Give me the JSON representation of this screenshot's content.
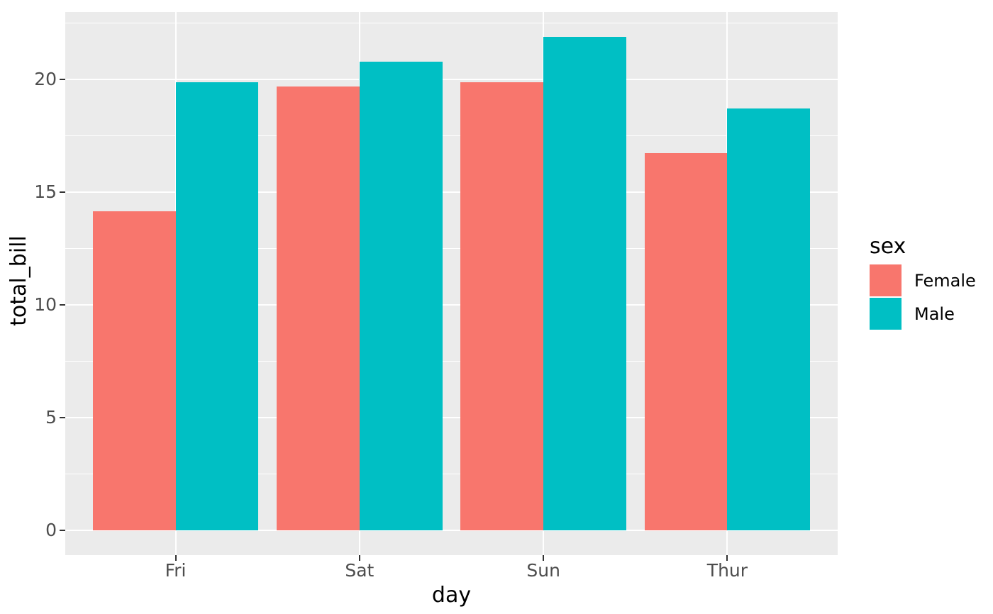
{
  "figure": {
    "background_color": "#FFFFFF",
    "panel_background_color": "#EBEBEB",
    "grid_color": "#FFFFFF",
    "tick_mark_color": "#333333",
    "axis_text_color": "#4D4D4D",
    "axis_title_color": "#000000"
  },
  "chart_data": {
    "type": "bar",
    "grouped": true,
    "title": "",
    "xlabel": "day",
    "ylabel": "total_bill",
    "categories": [
      "Fri",
      "Sat",
      "Sun",
      "Thur"
    ],
    "series": [
      {
        "name": "Female",
        "color": "#F8766D",
        "values": [
          14.15,
          19.68,
          19.87,
          16.72
        ]
      },
      {
        "name": "Male",
        "color": "#00BFC4",
        "values": [
          19.86,
          20.8,
          21.89,
          18.71
        ]
      }
    ],
    "y_ticks": [
      0,
      5,
      10,
      15,
      20
    ],
    "y_minor_ticks": [
      2.5,
      7.5,
      12.5,
      17.5,
      22.5
    ],
    "ylim": [
      -1.09,
      22.98
    ],
    "grid": "major-and-minor",
    "legend": {
      "title": "sex",
      "position": "right",
      "entries": [
        "Female",
        "Male"
      ]
    }
  }
}
